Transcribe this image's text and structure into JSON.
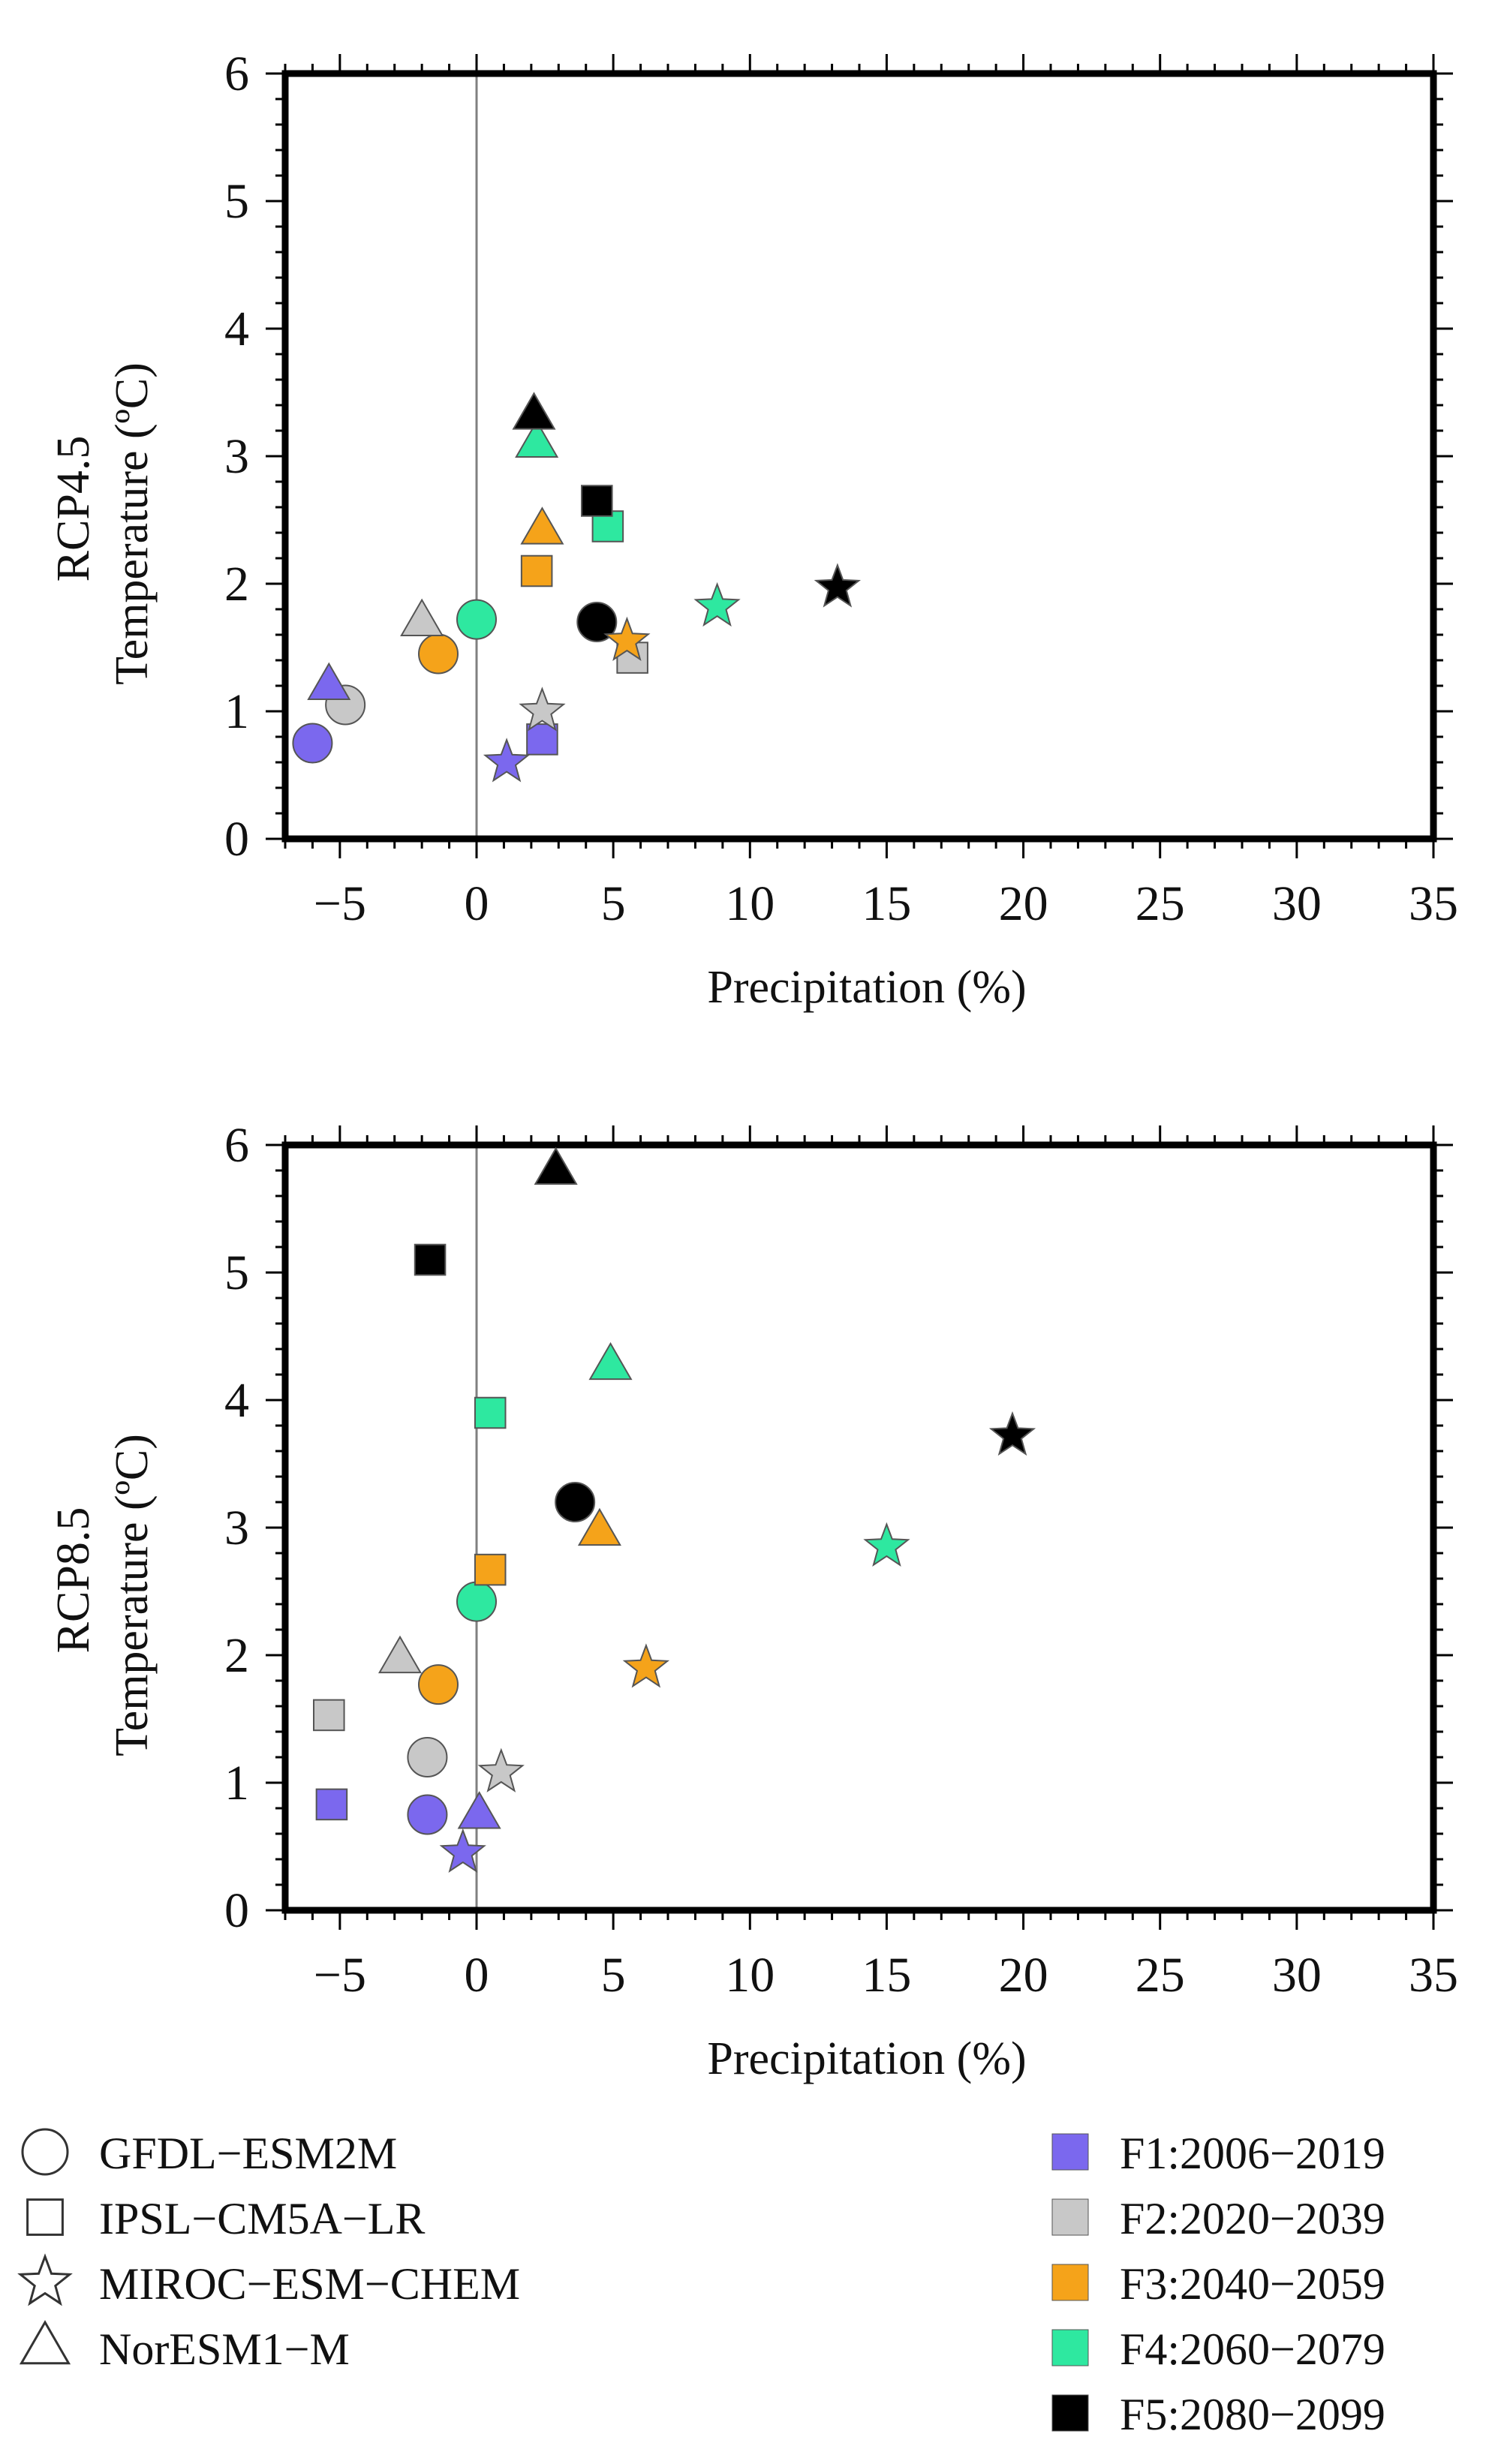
{
  "colors": {
    "F1": "#7b68ee",
    "F2": "#c8c8c8",
    "F3": "#f5a31a",
    "F4": "#2ee8a0",
    "F5": "#000000",
    "zero_line": "#808080",
    "frame": "#000000",
    "marker_edge": "#555555"
  },
  "models": [
    {
      "key": "GFDL",
      "name": "GFDL−ESM2M",
      "marker": "circle"
    },
    {
      "key": "IPSL",
      "name": "IPSL−CM5A−LR",
      "marker": "square"
    },
    {
      "key": "MIROC",
      "name": "MIROC−ESM−CHEM",
      "marker": "star"
    },
    {
      "key": "NorESM",
      "name": "NorESM1−M",
      "marker": "triangle"
    }
  ],
  "periods": [
    {
      "key": "F1",
      "name": "F1:2006−2019"
    },
    {
      "key": "F2",
      "name": "F2:2020−2039"
    },
    {
      "key": "F3",
      "name": "F3:2040−2059"
    },
    {
      "key": "F4",
      "name": "F4:2060−2079"
    },
    {
      "key": "F5",
      "name": "F5:2080−2099"
    }
  ],
  "chart_data": [
    {
      "type": "scatter",
      "row_label": "RCP4.5",
      "xlabel": "Precipitation (%)",
      "ylabel": "Temperature (ºC)",
      "xlim": [
        -7,
        35
      ],
      "ylim": [
        0,
        6
      ],
      "xticks": [
        -5,
        0,
        5,
        10,
        15,
        20,
        25,
        30,
        35
      ],
      "xtick_labels": [
        "−5",
        "0",
        "5",
        "10",
        "15",
        "20",
        "25",
        "30",
        "35"
      ],
      "yticks": [
        0,
        1,
        2,
        3,
        4,
        5,
        6
      ],
      "ytick_labels": [
        "0",
        "1",
        "2",
        "3",
        "4",
        "5",
        "6"
      ],
      "zero_line": 0,
      "points": [
        {
          "model": "GFDL",
          "period": "F1",
          "x": -6.0,
          "y": 0.75
        },
        {
          "model": "GFDL",
          "period": "F2",
          "x": -4.8,
          "y": 1.05
        },
        {
          "model": "GFDL",
          "period": "F3",
          "x": -1.4,
          "y": 1.45
        },
        {
          "model": "GFDL",
          "period": "F4",
          "x": 0.0,
          "y": 1.72
        },
        {
          "model": "GFDL",
          "period": "F5",
          "x": 4.4,
          "y": 1.7
        },
        {
          "model": "IPSL",
          "period": "F1",
          "x": 2.4,
          "y": 0.78
        },
        {
          "model": "IPSL",
          "period": "F2",
          "x": 5.7,
          "y": 1.42
        },
        {
          "model": "IPSL",
          "period": "F3",
          "x": 2.2,
          "y": 2.1
        },
        {
          "model": "IPSL",
          "period": "F4",
          "x": 4.8,
          "y": 2.45
        },
        {
          "model": "IPSL",
          "period": "F5",
          "x": 4.4,
          "y": 2.65
        },
        {
          "model": "MIROC",
          "period": "F1",
          "x": 1.1,
          "y": 0.6
        },
        {
          "model": "MIROC",
          "period": "F2",
          "x": 2.4,
          "y": 1.0
        },
        {
          "model": "MIROC",
          "period": "F3",
          "x": 5.5,
          "y": 1.55
        },
        {
          "model": "MIROC",
          "period": "F4",
          "x": 8.8,
          "y": 1.82
        },
        {
          "model": "MIROC",
          "period": "F5",
          "x": 13.2,
          "y": 1.97
        },
        {
          "model": "NorESM",
          "period": "F1",
          "x": -5.4,
          "y": 1.2
        },
        {
          "model": "NorESM",
          "period": "F2",
          "x": -2.0,
          "y": 1.7
        },
        {
          "model": "NorESM",
          "period": "F3",
          "x": 2.4,
          "y": 2.42
        },
        {
          "model": "NorESM",
          "period": "F4",
          "x": 2.2,
          "y": 3.1
        },
        {
          "model": "NorESM",
          "period": "F5",
          "x": 2.1,
          "y": 3.32
        }
      ]
    },
    {
      "type": "scatter",
      "row_label": "RCP8.5",
      "xlabel": "Precipitation (%)",
      "ylabel": "Temperature (ºC)",
      "xlim": [
        -7,
        35
      ],
      "ylim": [
        0,
        6
      ],
      "xticks": [
        -5,
        0,
        5,
        10,
        15,
        20,
        25,
        30,
        35
      ],
      "xtick_labels": [
        "−5",
        "0",
        "5",
        "10",
        "15",
        "20",
        "25",
        "30",
        "35"
      ],
      "yticks": [
        0,
        1,
        2,
        3,
        4,
        5,
        6
      ],
      "ytick_labels": [
        "0",
        "1",
        "2",
        "3",
        "4",
        "5",
        "6"
      ],
      "zero_line": 0,
      "points": [
        {
          "model": "GFDL",
          "period": "F1",
          "x": -1.8,
          "y": 0.75
        },
        {
          "model": "GFDL",
          "period": "F2",
          "x": -1.8,
          "y": 1.2
        },
        {
          "model": "GFDL",
          "period": "F3",
          "x": -1.4,
          "y": 1.77
        },
        {
          "model": "GFDL",
          "period": "F4",
          "x": 0.0,
          "y": 2.42
        },
        {
          "model": "GFDL",
          "period": "F5",
          "x": 3.6,
          "y": 3.2
        },
        {
          "model": "IPSL",
          "period": "F1",
          "x": -5.3,
          "y": 0.83
        },
        {
          "model": "IPSL",
          "period": "F2",
          "x": -5.4,
          "y": 1.53
        },
        {
          "model": "IPSL",
          "period": "F3",
          "x": 0.5,
          "y": 2.67
        },
        {
          "model": "IPSL",
          "period": "F4",
          "x": 0.5,
          "y": 3.9
        },
        {
          "model": "IPSL",
          "period": "F5",
          "x": -1.7,
          "y": 5.1
        },
        {
          "model": "MIROC",
          "period": "F1",
          "x": -0.5,
          "y": 0.45
        },
        {
          "model": "MIROC",
          "period": "F2",
          "x": 0.9,
          "y": 1.08
        },
        {
          "model": "MIROC",
          "period": "F3",
          "x": 6.2,
          "y": 1.9
        },
        {
          "model": "MIROC",
          "period": "F4",
          "x": 15.0,
          "y": 2.85
        },
        {
          "model": "MIROC",
          "period": "F5",
          "x": 19.6,
          "y": 3.72
        },
        {
          "model": "NorESM",
          "period": "F1",
          "x": 0.1,
          "y": 0.75
        },
        {
          "model": "NorESM",
          "period": "F2",
          "x": -2.8,
          "y": 1.97
        },
        {
          "model": "NorESM",
          "period": "F3",
          "x": 4.5,
          "y": 2.97
        },
        {
          "model": "NorESM",
          "period": "F4",
          "x": 4.9,
          "y": 4.27
        },
        {
          "model": "NorESM",
          "period": "F5",
          "x": 2.9,
          "y": 5.8
        }
      ]
    }
  ]
}
